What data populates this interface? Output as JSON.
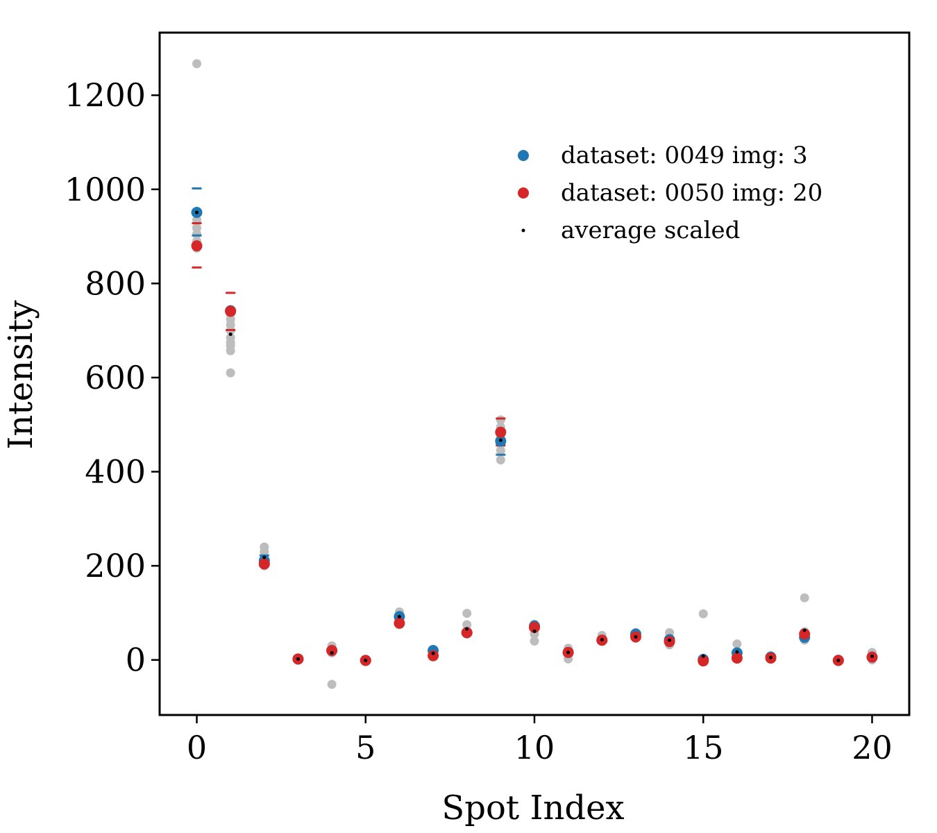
{
  "chart_data": {
    "type": "scatter",
    "xlabel": "Spot Index",
    "ylabel": "Intensity",
    "xlim": [
      -1.1,
      21.1
    ],
    "ylim": [
      -117,
      1333
    ],
    "xticks": [
      0,
      5,
      10,
      15,
      20
    ],
    "yticks": [
      0,
      200,
      400,
      600,
      800,
      1000,
      1200
    ],
    "grid": false,
    "legend_position": "upper-right",
    "colors": {
      "dataset_0049": "#1f77b4",
      "dataset_0050": "#d62728",
      "average": "#000000",
      "samples": "#bdbdbd"
    },
    "series": [
      {
        "name": "dataset: 0049 img: 3",
        "color": "#1f77b4",
        "x": [
          0,
          1,
          2,
          3,
          4,
          5,
          6,
          7,
          8,
          9,
          10,
          11,
          12,
          13,
          14,
          15,
          16,
          17,
          18,
          19,
          20
        ],
        "y": [
          951,
          742,
          211,
          2,
          20,
          -1,
          92,
          20,
          58,
          465,
          72,
          16,
          42,
          55,
          43,
          1,
          15,
          6,
          48,
          -1,
          6
        ],
        "err_low": [
          902,
          null,
          222,
          null,
          null,
          null,
          null,
          null,
          null,
          436,
          null,
          null,
          null,
          null,
          null,
          null,
          null,
          null,
          null,
          null,
          null
        ],
        "err_high": [
          1002,
          null,
          null,
          null,
          null,
          null,
          null,
          null,
          null,
          null,
          null,
          null,
          null,
          null,
          null,
          null,
          null,
          null,
          null,
          null,
          null
        ]
      },
      {
        "name": "dataset: 0050 img: 20",
        "color": "#d62728",
        "x": [
          0,
          1,
          2,
          3,
          4,
          5,
          6,
          7,
          8,
          9,
          10,
          11,
          12,
          13,
          14,
          15,
          16,
          17,
          18,
          19,
          20
        ],
        "y": [
          880,
          741,
          204,
          2,
          20,
          -1,
          78,
          9,
          58,
          484,
          69,
          16,
          42,
          49,
          39,
          -2,
          4,
          4,
          55,
          -1,
          6
        ],
        "err_low": [
          834,
          701,
          199,
          null,
          null,
          null,
          null,
          null,
          null,
          456,
          null,
          null,
          null,
          null,
          null,
          null,
          null,
          null,
          null,
          null,
          null
        ],
        "err_high": [
          928,
          780,
          null,
          null,
          null,
          null,
          null,
          null,
          null,
          513,
          null,
          null,
          null,
          null,
          null,
          null,
          null,
          null,
          null,
          null,
          null
        ]
      },
      {
        "name": "average scaled",
        "color": "#000000",
        "x": [
          0,
          1,
          2,
          3,
          4,
          5,
          6,
          7,
          8,
          9,
          10,
          11,
          12,
          13,
          14,
          15,
          16,
          17,
          18,
          19,
          20
        ],
        "y": [
          951,
          692,
          218,
          2,
          15,
          -1,
          92,
          14,
          66,
          467,
          61,
          16,
          43,
          49,
          42,
          8,
          17,
          5,
          63,
          -1,
          8
        ]
      }
    ],
    "samples": {
      "color": "#bdbdbd",
      "points": [
        [
          0,
          1267
        ],
        [
          0,
          935
        ],
        [
          0,
          918
        ],
        [
          0,
          905
        ],
        [
          0,
          890
        ],
        [
          0,
          875
        ],
        [
          1,
          735
        ],
        [
          1,
          724
        ],
        [
          1,
          712
        ],
        [
          1,
          700
        ],
        [
          1,
          685
        ],
        [
          1,
          675
        ],
        [
          1,
          668
        ],
        [
          1,
          657
        ],
        [
          1,
          610
        ],
        [
          2,
          240
        ],
        [
          2,
          230
        ],
        [
          2,
          212
        ],
        [
          2,
          200
        ],
        [
          3,
          3
        ],
        [
          3,
          1
        ],
        [
          4,
          30
        ],
        [
          4,
          25
        ],
        [
          4,
          15
        ],
        [
          4,
          -52
        ],
        [
          5,
          0
        ],
        [
          5,
          -2
        ],
        [
          6,
          102
        ],
        [
          6,
          92
        ],
        [
          6,
          80
        ],
        [
          7,
          22
        ],
        [
          7,
          12
        ],
        [
          7,
          8
        ],
        [
          8,
          99
        ],
        [
          8,
          75
        ],
        [
          8,
          55
        ],
        [
          9,
          510
        ],
        [
          9,
          495
        ],
        [
          9,
          475
        ],
        [
          9,
          458
        ],
        [
          9,
          445
        ],
        [
          9,
          425
        ],
        [
          10,
          76
        ],
        [
          10,
          55
        ],
        [
          10,
          40
        ],
        [
          11,
          25
        ],
        [
          11,
          10
        ],
        [
          11,
          2
        ],
        [
          12,
          52
        ],
        [
          12,
          40
        ],
        [
          13,
          58
        ],
        [
          13,
          46
        ],
        [
          14,
          58
        ],
        [
          14,
          46
        ],
        [
          14,
          32
        ],
        [
          15,
          98
        ],
        [
          15,
          4
        ],
        [
          15,
          -3
        ],
        [
          16,
          34
        ],
        [
          16,
          10
        ],
        [
          16,
          2
        ],
        [
          17,
          9
        ],
        [
          17,
          2
        ],
        [
          18,
          132
        ],
        [
          18,
          60
        ],
        [
          18,
          42
        ],
        [
          19,
          2
        ],
        [
          19,
          -1
        ],
        [
          20,
          16
        ],
        [
          20,
          4
        ],
        [
          20,
          0
        ]
      ]
    }
  }
}
